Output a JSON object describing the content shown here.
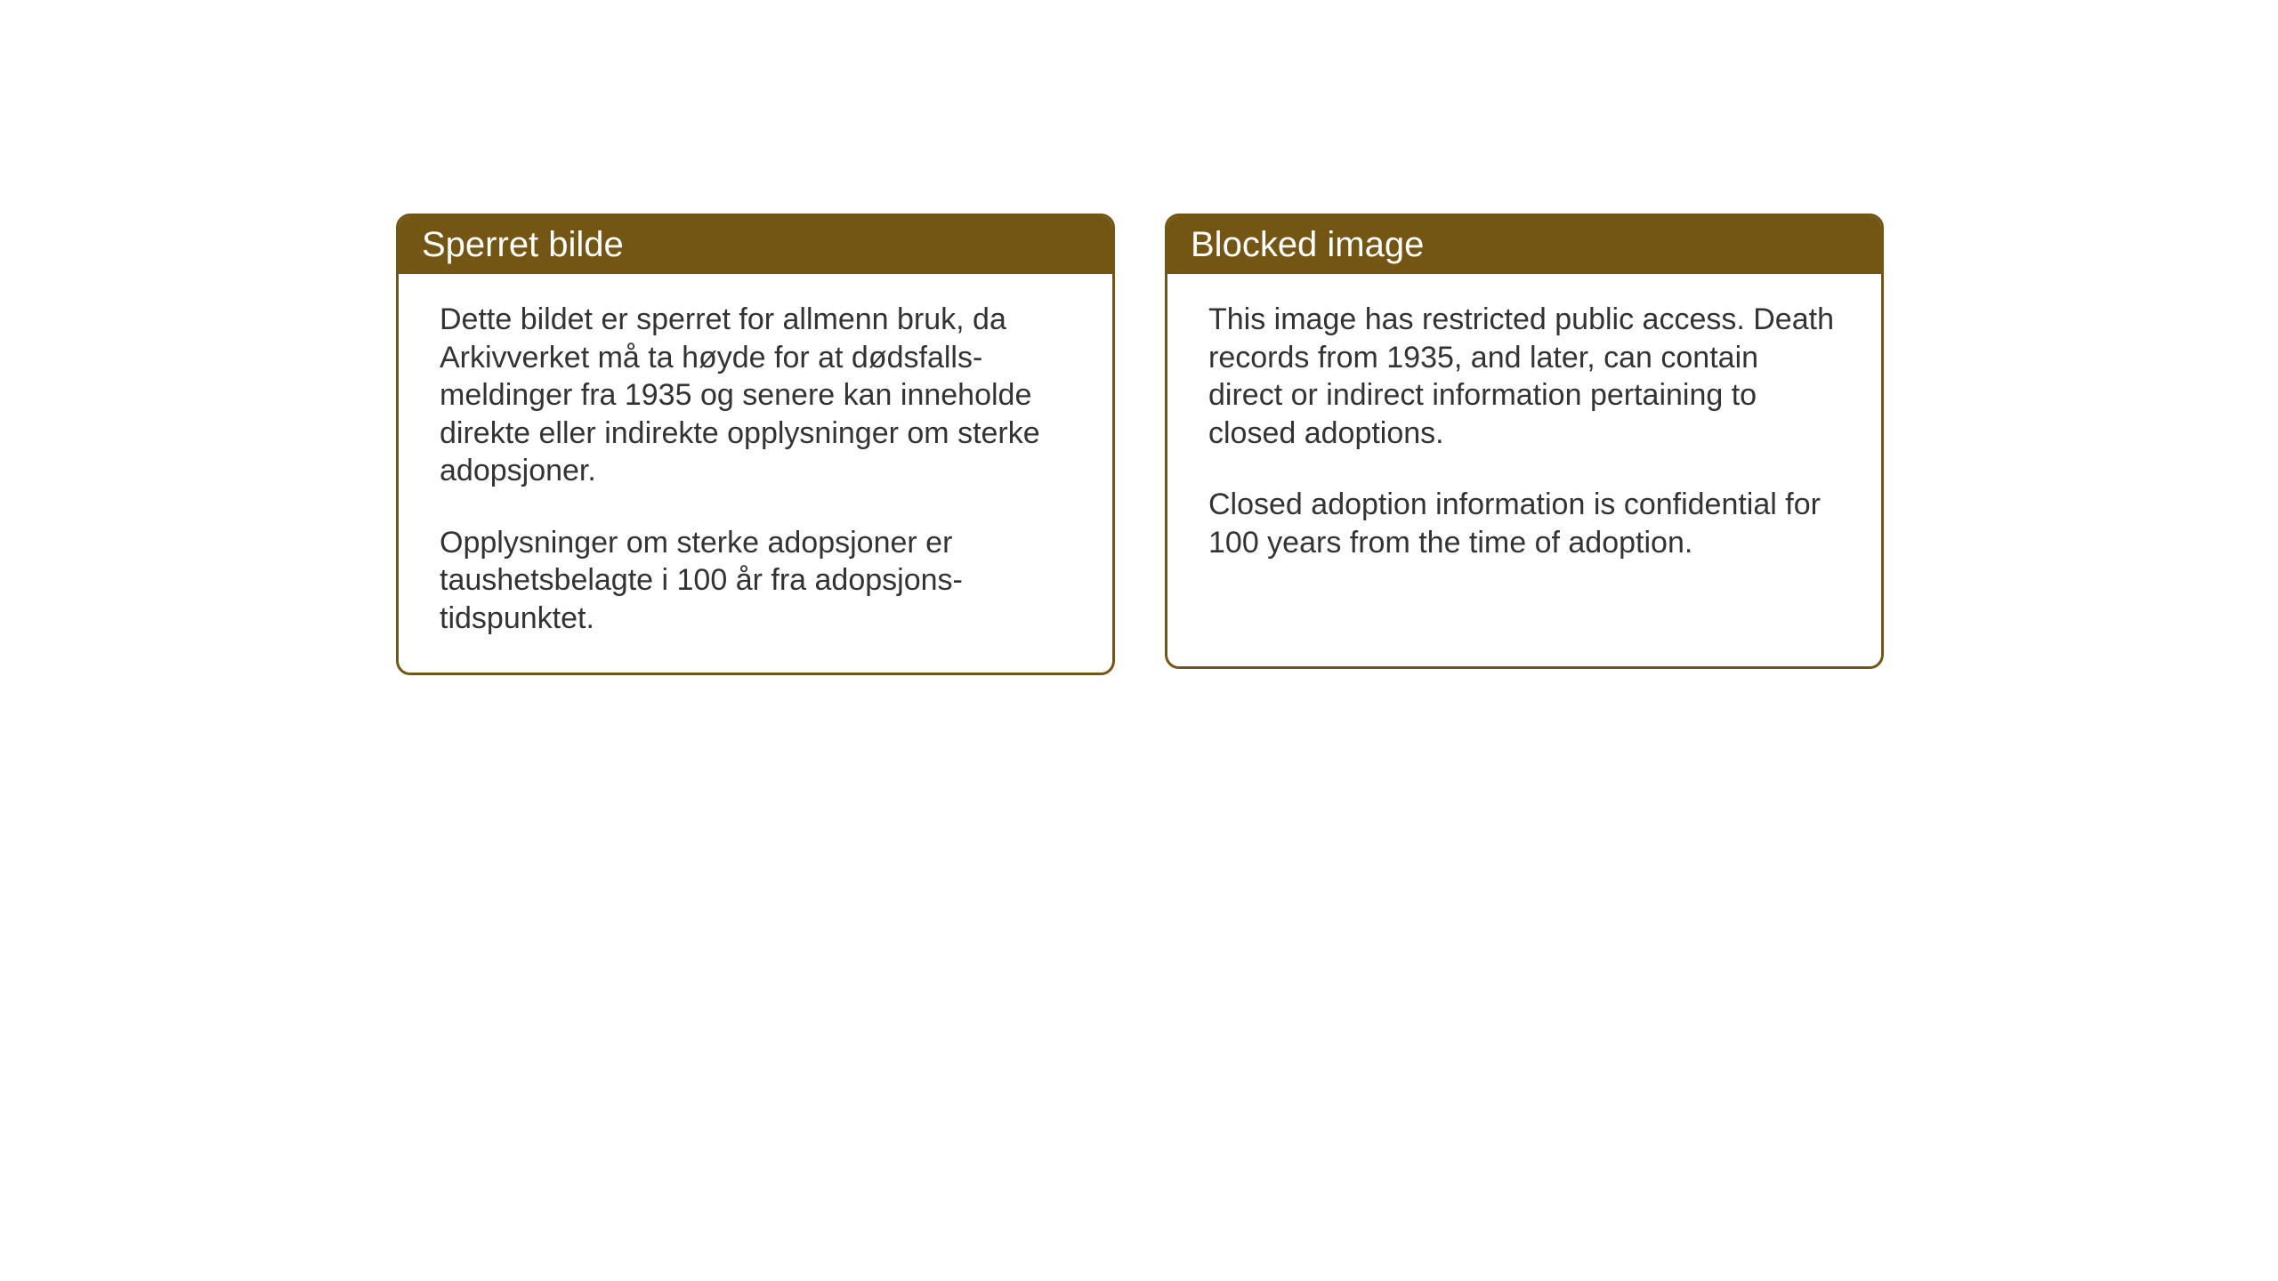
{
  "cards": {
    "norwegian": {
      "title": "Sperret bilde",
      "paragraph1": "Dette bildet er sperret for allmenn bruk, da Arkivverket må ta høyde for at dødsfalls-meldinger fra 1935 og senere kan inneholde direkte eller indirekte opplysninger om sterke adopsjoner.",
      "paragraph2": "Opplysninger om sterke adopsjoner er taushetsbelagte i 100 år fra adopsjons-tidspunktet."
    },
    "english": {
      "title": "Blocked image",
      "paragraph1": "This image has restricted public access. Death records from 1935, and later, can contain direct or indirect information pertaining to closed adoptions.",
      "paragraph2": "Closed adoption information is confidential for 100 years from the time of adoption."
    }
  },
  "styling": {
    "header_bg_color": "#735613",
    "header_text_color": "#ffffff",
    "border_color": "#735613",
    "body_text_color": "#333333",
    "card_bg_color": "#ffffff",
    "page_bg_color": "#ffffff",
    "border_radius": 16,
    "border_width": 3,
    "title_fontsize": 40,
    "body_fontsize": 34
  }
}
